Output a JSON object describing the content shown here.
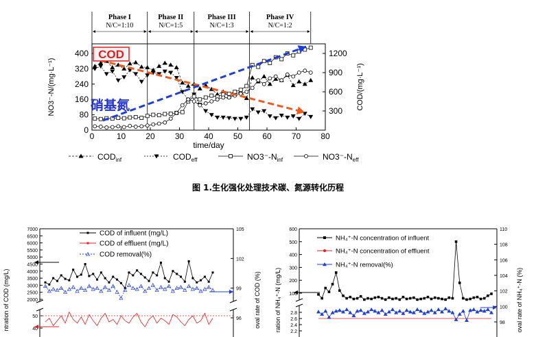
{
  "caption": "图 1.生化强化处理技术碳、氮源转化历程",
  "chart_data": [
    {
      "type": "line",
      "xlabel": "time/day",
      "ylabel": "NO3⁻-N/(mg·L⁻¹)",
      "y2label": "COD/(mg·L⁻¹)",
      "xlim": [
        0,
        80
      ],
      "ylim": [
        0,
        450
      ],
      "y2lim": [
        0,
        1350
      ],
      "x_ticks": [
        "0",
        "10",
        "20",
        "30",
        "40",
        "50",
        "60",
        "70",
        "80"
      ],
      "y_ticks": [
        "0",
        "80",
        "160",
        "240",
        "320",
        "400"
      ],
      "y2_ticks": [
        "300",
        "600",
        "900",
        "1200"
      ],
      "phases": [
        {
          "name": "Phase I",
          "ratio": "N/C=1:10",
          "start": 0,
          "end": 19
        },
        {
          "name": "Phase II",
          "ratio": "N/C=1:5",
          "start": 19,
          "end": 35
        },
        {
          "name": "Phase III",
          "ratio": "N/C=1:3",
          "start": 35,
          "end": 54
        },
        {
          "name": "Phase IV",
          "ratio": "N/C=1:2",
          "start": 54,
          "end": 75
        }
      ],
      "annotations": {
        "cod": "COD",
        "nitrate": "硝基氮"
      },
      "legend": [
        "COD",
        "COD",
        "NO3⁻-N",
        "NO3⁻-N"
      ],
      "legend_subs": [
        "inf",
        "eff",
        "inf",
        "eff"
      ],
      "series": [
        {
          "axis": "right",
          "x": [
            1,
            3,
            5,
            7,
            9,
            11,
            13,
            15,
            17,
            19,
            21,
            23,
            25,
            27,
            29,
            31,
            33,
            35,
            37,
            39,
            41,
            43,
            45,
            47,
            49,
            51,
            53,
            55,
            57,
            59,
            61,
            63,
            65,
            67,
            69,
            71,
            73,
            75
          ],
          "values": [
            1000,
            1050,
            1080,
            980,
            1020,
            960,
            1040,
            1060,
            990,
            980,
            940,
            1000,
            1050,
            1020,
            980,
            740,
            690,
            720,
            650,
            700,
            640,
            560,
            600,
            520,
            560,
            600,
            500,
            820,
            760,
            840,
            720,
            800,
            780,
            860,
            700,
            760,
            720,
            780
          ]
        },
        {
          "axis": "right",
          "x": [
            1,
            3,
            5,
            7,
            9,
            11,
            13,
            15,
            17,
            19,
            21,
            23,
            25,
            27,
            29,
            31,
            33,
            35,
            37,
            39,
            41,
            43,
            45,
            47,
            49,
            51,
            53,
            55,
            57,
            59,
            61,
            63,
            65,
            67,
            69,
            71,
            73,
            75
          ],
          "values": [
            960,
            1000,
            880,
            920,
            780,
            830,
            940,
            880,
            760,
            860,
            900,
            880,
            920,
            900,
            820,
            600,
            480,
            560,
            400,
            300,
            240,
            200,
            200,
            190,
            180,
            180,
            200,
            330,
            280,
            300,
            220,
            190,
            230,
            200,
            220,
            180,
            260,
            210
          ]
        },
        {
          "axis": "left",
          "x": [
            1,
            3,
            5,
            7,
            9,
            11,
            13,
            15,
            17,
            19,
            21,
            23,
            25,
            27,
            29,
            31,
            33,
            35,
            37,
            39,
            41,
            43,
            45,
            47,
            49,
            51,
            53,
            55,
            57,
            59,
            61,
            63,
            65,
            67,
            69,
            71,
            73,
            75
          ],
          "values": [
            60,
            58,
            62,
            60,
            64,
            62,
            66,
            68,
            64,
            74,
            80,
            78,
            84,
            86,
            90,
            94,
            150,
            176,
            160,
            170,
            180,
            174,
            186,
            190,
            200,
            210,
            230,
            340,
            330,
            360,
            350,
            380,
            370,
            400,
            390,
            410,
            420,
            430
          ]
        },
        {
          "axis": "left",
          "x": [
            1,
            3,
            5,
            7,
            9,
            11,
            13,
            15,
            17,
            19,
            21,
            23,
            25,
            27,
            29,
            31,
            33,
            35,
            37,
            39,
            41,
            43,
            45,
            47,
            49,
            51,
            53,
            55,
            57,
            59,
            61,
            63,
            65,
            67,
            69,
            71,
            73,
            75
          ],
          "values": [
            20,
            18,
            14,
            16,
            20,
            16,
            22,
            18,
            20,
            24,
            30,
            34,
            40,
            60,
            90,
            130,
            160,
            150,
            130,
            140,
            150,
            160,
            170,
            170,
            180,
            190,
            200,
            220,
            260,
            240,
            270,
            280,
            260,
            290,
            280,
            300,
            310,
            300
          ]
        }
      ]
    },
    {
      "type": "line",
      "ylabel": "ntration of COD (mg/L)",
      "y2label": "oval rate of COD (%)",
      "y_ticks_upper": [
        "2000",
        "2500",
        "3000",
        "3500",
        "4000",
        "4500",
        "5000",
        "5500",
        "6000",
        "6500",
        "7000"
      ],
      "y_ticks_lower": [
        "40",
        "50"
      ],
      "y2_ticks": [
        "96",
        "99",
        "102",
        "105"
      ],
      "legend": [
        "COD of influent (mg/L)",
        "COD of effluent (mg/L)",
        "COD removal(%)"
      ],
      "series": [
        {
          "name": "COD of influent (mg/L)",
          "axis": "left",
          "values": [
            3200,
            3050,
            3500,
            3300,
            3700,
            3450,
            3350,
            4100,
            3600,
            3750,
            4500,
            3650,
            3800,
            3400,
            3900,
            3500,
            3200,
            3600,
            3400,
            3150,
            2800,
            3900,
            3700,
            4050,
            3800,
            3550,
            3300,
            3900,
            3700,
            4600,
            3500,
            3250,
            4000,
            3800,
            3600,
            3250,
            4700,
            3500,
            3200,
            3350,
            3600,
            3250,
            3900
          ]
        },
        {
          "name": "COD of effluent (mg/L)",
          "axis": "left",
          "values": [
            45,
            48,
            42,
            46,
            50,
            44,
            53,
            47,
            44,
            49,
            43,
            51,
            46,
            42,
            48,
            52,
            45,
            47,
            43,
            50,
            46,
            44,
            49,
            52,
            45,
            41,
            47,
            50,
            44,
            48,
            46,
            43,
            51,
            49,
            45,
            42,
            47,
            50,
            44,
            46,
            52,
            43,
            48
          ]
        },
        {
          "name": "COD removal(%)",
          "axis": "right",
          "values": [
            99.2,
            98.7,
            98.9,
            98.8,
            99.0,
            98.6,
            98.9,
            99.1,
            98.7,
            99.0,
            98.8,
            99.2,
            98.9,
            99.0,
            98.7,
            99.1,
            98.8,
            99.2,
            98.6,
            98.0,
            98.8,
            99.3,
            99.0,
            98.9,
            99.2,
            98.7,
            99.0,
            99.3,
            98.8,
            99.1,
            98.9,
            99.2,
            98.7,
            99.0,
            99.1,
            98.8,
            99.2,
            98.9,
            99.0,
            98.7,
            98.9,
            99.1,
            98.8
          ]
        }
      ]
    },
    {
      "type": "line",
      "ylabel": "ration of NH₄⁺-N (mg/L)",
      "y2label": "oval rate of NH₄⁺-N (%)",
      "y_ticks_upper": [
        "100",
        "200",
        "300",
        "400",
        "500",
        "600"
      ],
      "y_ticks_lower": [
        "2.2",
        "2.4",
        "2.6",
        "2.8"
      ],
      "y2_ticks": [
        "98",
        "100",
        "102",
        "104",
        "106",
        "108",
        "110"
      ],
      "legend": [
        "NH₄⁺-N concentration of influent",
        "NH₄⁺-N concentration of effluent",
        "NH₄⁺-N removal(%)"
      ],
      "series": [
        {
          "name": "NH₄⁺-N concentration of influent",
          "axis": "left",
          "values": [
            90,
            60,
            140,
            110,
            170,
            260,
            120,
            80,
            60,
            70,
            55,
            60,
            75,
            50,
            60,
            55,
            65,
            70,
            60,
            50,
            65,
            55,
            60,
            50,
            70,
            55,
            60,
            65,
            50,
            55,
            60,
            70,
            55,
            65,
            60,
            55,
            50,
            65,
            60,
            500,
            180,
            60,
            50,
            55,
            65,
            70,
            55,
            60,
            80,
            95
          ]
        },
        {
          "name": "NH₄⁺-N concentration of effluent",
          "axis": "left",
          "values": [
            2.6,
            2.6,
            2.6,
            2.6,
            2.6,
            2.6,
            2.6,
            2.6,
            2.6,
            2.6,
            2.6,
            2.6,
            2.6,
            2.6,
            2.6,
            2.6,
            2.6,
            2.6,
            2.6,
            2.6,
            2.6,
            2.6,
            2.6,
            2.6,
            2.6,
            2.6,
            2.6,
            2.6,
            2.6,
            2.6,
            2.6,
            2.6,
            2.6,
            2.6,
            2.6,
            2.6,
            2.6,
            2.6,
            2.6,
            2.6,
            2.6,
            2.6,
            2.6,
            2.6,
            2.6,
            2.6,
            2.6,
            2.6,
            2.6,
            2.6
          ]
        },
        {
          "name": "NH₄⁺-N removal(%)",
          "axis": "right",
          "values": [
            99.3,
            99.0,
            99.4,
            98.6,
            99.2,
            99.4,
            99.5,
            99.3,
            99.6,
            99.2,
            98.8,
            99.4,
            99.5,
            99.1,
            99.3,
            99.6,
            99.4,
            99.2,
            99.5,
            99.0,
            99.3,
            99.6,
            99.2,
            99.4,
            99.1,
            99.5,
            99.3,
            99.2,
            99.6,
            99.4,
            99.1,
            99.3,
            99.5,
            99.2,
            99.6,
            99.3,
            99.7,
            99.4,
            99.2,
            98.3,
            99.0,
            99.4,
            98.2,
            99.5,
            99.6,
            99.3,
            99.5,
            99.4,
            99.6,
            99.2
          ]
        }
      ]
    }
  ]
}
